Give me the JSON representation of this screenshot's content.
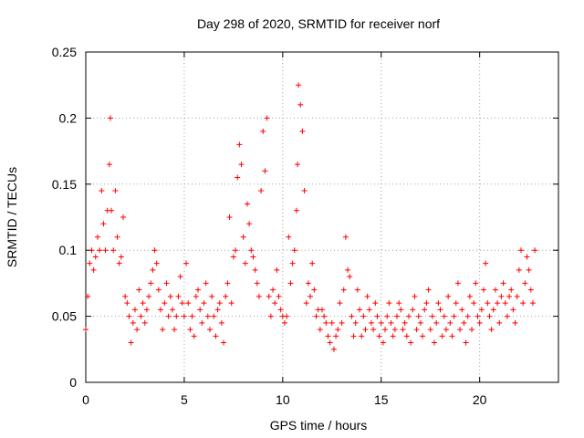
{
  "chart_data": {
    "type": "scatter",
    "title": "Day 298 of 2020, SRMTID for receiver norf",
    "xlabel": "GPS time / hours",
    "ylabel": "SRMTID / TECUs",
    "xlim": [
      0,
      24
    ],
    "ylim": [
      0,
      0.25
    ],
    "xticks": [
      0,
      5,
      10,
      15,
      20
    ],
    "xtick_labels": [
      "0",
      "5",
      "10",
      "15",
      "20"
    ],
    "yticks": [
      0,
      0.05,
      0.1,
      0.15,
      0.2,
      0.25
    ],
    "ytick_labels": [
      "0",
      "0.05",
      "0.1",
      "0.15",
      "0.2",
      "0.25"
    ],
    "grid": true,
    "marker": "+",
    "color": "#ff0000",
    "series": [
      {
        "name": "SRMTID",
        "x": [
          0.0,
          0.1,
          0.2,
          0.3,
          0.4,
          0.5,
          0.6,
          0.7,
          0.8,
          0.9,
          1.0,
          1.1,
          1.2,
          1.25,
          1.3,
          1.4,
          1.5,
          1.6,
          1.7,
          1.8,
          1.9,
          2.0,
          2.1,
          2.2,
          2.3,
          2.4,
          2.5,
          2.6,
          2.7,
          2.8,
          2.9,
          3.0,
          3.1,
          3.2,
          3.3,
          3.4,
          3.5,
          3.6,
          3.7,
          3.8,
          3.9,
          4.0,
          4.1,
          4.2,
          4.3,
          4.4,
          4.5,
          4.6,
          4.7,
          4.8,
          4.9,
          5.0,
          5.1,
          5.2,
          5.3,
          5.4,
          5.5,
          5.6,
          5.7,
          5.8,
          5.9,
          6.0,
          6.1,
          6.2,
          6.3,
          6.4,
          6.5,
          6.6,
          6.7,
          6.8,
          6.9,
          7.0,
          7.1,
          7.2,
          7.3,
          7.4,
          7.5,
          7.6,
          7.7,
          7.8,
          7.9,
          8.0,
          8.1,
          8.2,
          8.3,
          8.4,
          8.5,
          8.6,
          8.7,
          8.8,
          8.9,
          9.0,
          9.1,
          9.2,
          9.3,
          9.4,
          9.5,
          9.6,
          9.7,
          9.8,
          9.9,
          10.0,
          10.1,
          10.2,
          10.3,
          10.4,
          10.5,
          10.6,
          10.7,
          10.75,
          10.8,
          10.9,
          11.0,
          11.1,
          11.2,
          11.3,
          11.4,
          11.5,
          11.6,
          11.7,
          11.8,
          11.9,
          12.0,
          12.1,
          12.2,
          12.3,
          12.4,
          12.5,
          12.6,
          12.7,
          12.8,
          12.9,
          13.0,
          13.1,
          13.2,
          13.3,
          13.4,
          13.5,
          13.6,
          13.7,
          13.8,
          13.9,
          14.0,
          14.1,
          14.2,
          14.3,
          14.4,
          14.5,
          14.6,
          14.7,
          14.8,
          14.9,
          15.0,
          15.1,
          15.2,
          15.3,
          15.4,
          15.5,
          15.6,
          15.7,
          15.8,
          15.9,
          16.0,
          16.1,
          16.2,
          16.3,
          16.4,
          16.5,
          16.6,
          16.7,
          16.8,
          16.9,
          17.0,
          17.1,
          17.2,
          17.3,
          17.4,
          17.5,
          17.6,
          17.7,
          17.8,
          17.9,
          18.0,
          18.1,
          18.2,
          18.3,
          18.4,
          18.5,
          18.6,
          18.7,
          18.8,
          18.9,
          19.0,
          19.1,
          19.2,
          19.3,
          19.4,
          19.5,
          19.6,
          19.7,
          19.8,
          19.9,
          20.0,
          20.1,
          20.2,
          20.3,
          20.4,
          20.5,
          20.6,
          20.7,
          20.8,
          20.9,
          21.0,
          21.1,
          21.2,
          21.3,
          21.4,
          21.5,
          21.6,
          21.7,
          21.8,
          21.9,
          22.0,
          22.1,
          22.2,
          22.3,
          22.4,
          22.5,
          22.6,
          22.7,
          22.8
        ],
        "y": [
          0.04,
          0.065,
          0.09,
          0.1,
          0.085,
          0.095,
          0.11,
          0.1,
          0.145,
          0.12,
          0.1,
          0.13,
          0.165,
          0.2,
          0.13,
          0.1,
          0.145,
          0.11,
          0.09,
          0.095,
          0.125,
          0.065,
          0.06,
          0.05,
          0.03,
          0.045,
          0.055,
          0.04,
          0.07,
          0.05,
          0.06,
          0.045,
          0.055,
          0.065,
          0.075,
          0.085,
          0.1,
          0.09,
          0.07,
          0.055,
          0.04,
          0.06,
          0.075,
          0.05,
          0.065,
          0.055,
          0.04,
          0.05,
          0.065,
          0.08,
          0.06,
          0.05,
          0.09,
          0.06,
          0.04,
          0.05,
          0.035,
          0.065,
          0.07,
          0.055,
          0.045,
          0.06,
          0.075,
          0.05,
          0.04,
          0.065,
          0.05,
          0.035,
          0.055,
          0.06,
          0.045,
          0.03,
          0.065,
          0.075,
          0.125,
          0.06,
          0.095,
          0.1,
          0.155,
          0.18,
          0.165,
          0.11,
          0.09,
          0.135,
          0.12,
          0.1,
          0.095,
          0.085,
          0.075,
          0.065,
          0.145,
          0.19,
          0.16,
          0.2,
          0.065,
          0.05,
          0.07,
          0.06,
          0.085,
          0.065,
          0.055,
          0.05,
          0.045,
          0.05,
          0.11,
          0.075,
          0.09,
          0.1,
          0.13,
          0.165,
          0.225,
          0.21,
          0.19,
          0.145,
          0.06,
          0.075,
          0.065,
          0.09,
          0.07,
          0.05,
          0.055,
          0.04,
          0.055,
          0.05,
          0.045,
          0.035,
          0.03,
          0.045,
          0.025,
          0.035,
          0.04,
          0.06,
          0.045,
          0.07,
          0.11,
          0.085,
          0.08,
          0.05,
          0.035,
          0.045,
          0.07,
          0.055,
          0.035,
          0.05,
          0.04,
          0.065,
          0.055,
          0.045,
          0.04,
          0.06,
          0.05,
          0.035,
          0.045,
          0.03,
          0.04,
          0.05,
          0.06,
          0.045,
          0.035,
          0.04,
          0.05,
          0.06,
          0.055,
          0.04,
          0.045,
          0.035,
          0.05,
          0.03,
          0.055,
          0.065,
          0.04,
          0.05,
          0.045,
          0.035,
          0.055,
          0.06,
          0.07,
          0.04,
          0.05,
          0.03,
          0.045,
          0.06,
          0.055,
          0.035,
          0.05,
          0.04,
          0.065,
          0.045,
          0.035,
          0.05,
          0.06,
          0.075,
          0.04,
          0.055,
          0.045,
          0.03,
          0.05,
          0.065,
          0.04,
          0.06,
          0.075,
          0.05,
          0.045,
          0.055,
          0.07,
          0.09,
          0.06,
          0.05,
          0.04,
          0.055,
          0.07,
          0.06,
          0.045,
          0.065,
          0.075,
          0.06,
          0.05,
          0.065,
          0.07,
          0.055,
          0.045,
          0.065,
          0.085,
          0.1,
          0.06,
          0.075,
          0.095,
          0.085,
          0.07,
          0.06,
          0.1
        ]
      }
    ]
  }
}
